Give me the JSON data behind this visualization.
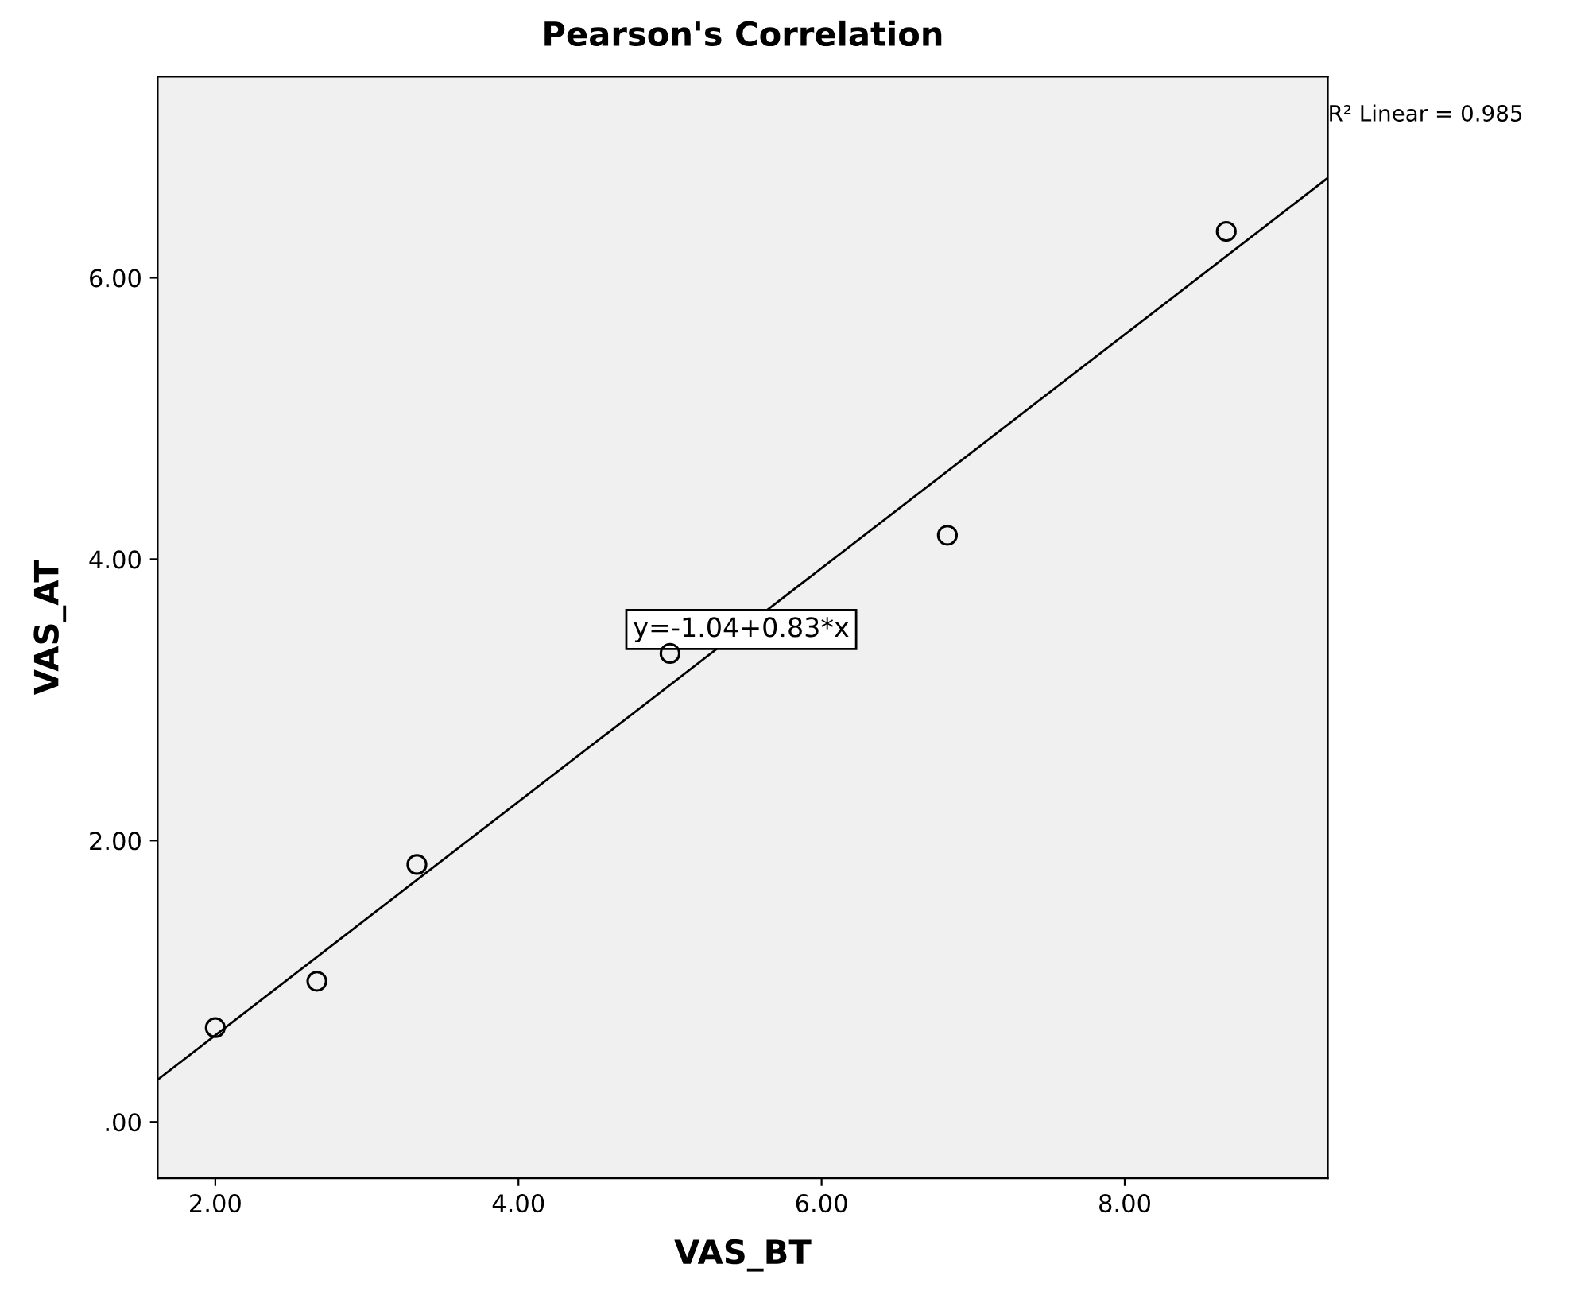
{
  "chart_data": {
    "type": "scatter",
    "title": "Pearson's Correlation",
    "xlabel": "VAS_BT",
    "ylabel": "VAS_AT",
    "xlim": [
      1.62,
      9.34
    ],
    "ylim": [
      -0.4,
      7.43
    ],
    "xticks": [
      {
        "value": 2,
        "label": "2.00"
      },
      {
        "value": 4,
        "label": "4.00"
      },
      {
        "value": 6,
        "label": "6.00"
      },
      {
        "value": 8,
        "label": "8.00"
      }
    ],
    "yticks": [
      {
        "value": 0,
        "label": ".00"
      },
      {
        "value": 2,
        "label": "2.00"
      },
      {
        "value": 4,
        "label": "4.00"
      },
      {
        "value": 6,
        "label": "6.00"
      }
    ],
    "grid": false,
    "legend": false,
    "series": [
      {
        "marker": "circle",
        "color": "#000000",
        "x": [
          2.0,
          2.67,
          3.33,
          5.0,
          6.83,
          8.67
        ],
        "values": [
          0.67,
          1.0,
          1.83,
          3.33,
          4.17,
          6.33
        ]
      },
      {
        "type": "line",
        "color": "#000000",
        "x": [
          1.62,
          9.34
        ],
        "values": [
          0.3,
          6.71
        ]
      }
    ],
    "annotations": [
      {
        "text": "y=-1.04+0.83*x",
        "x": 5.47,
        "y": 3.5
      },
      "R² Linear = 0.985"
    ]
  }
}
